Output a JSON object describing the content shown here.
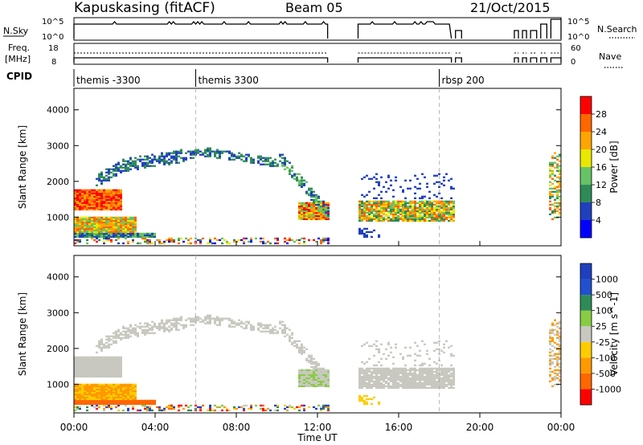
{
  "header": {
    "station": "Kapuskasing (fitACF)",
    "beam": "Beam 05",
    "date": "21/Oct/2015"
  },
  "top_panels": {
    "nsky_label": "N.Sky",
    "nsky_ticks": [
      "10^5",
      "10^0"
    ],
    "nsearch_label": "N.Search",
    "nsearch_ticks": [
      "10^5",
      "10^0"
    ],
    "freq_label_1": "Freq.",
    "freq_label_2": "[MHz]",
    "freq_ticks": [
      "18",
      "8"
    ],
    "nave_label": "Nave",
    "nave_ticks": [
      "60",
      "0"
    ],
    "cpid_label": "CPID"
  },
  "cpid_segments": [
    {
      "label": "themis -3300",
      "start": 0
    },
    {
      "label": "themis 3300",
      "start": 6
    },
    {
      "label": "rbsp 200",
      "start": 18
    }
  ],
  "colors": {
    "power_scale": [
      "#0000ff",
      "#1f3fbf",
      "#2e8b57",
      "#66c266",
      "#e8e800",
      "#ffa500",
      "#ff6600",
      "#ff0000"
    ],
    "velocity_scale": [
      "#1f3fbf",
      "#2050d0",
      "#2e8b57",
      "#88cc44",
      "#c8c8c0",
      "#ffcc00",
      "#ff9900",
      "#ff6600",
      "#ff0000"
    ],
    "ground_scatter": "#c8c8c0"
  },
  "chart_data": [
    {
      "type": "heatmap",
      "panel": "power",
      "ylabel": "Slant Range [km]",
      "yticks": [
        1000,
        2000,
        3000,
        4000
      ],
      "ylim": [
        200,
        4600
      ],
      "xlim": [
        0,
        24
      ],
      "colorbar_label": "Power [dB]",
      "colorbar_ticks": [
        "4",
        "8",
        "12",
        "16",
        "20",
        "24",
        "28"
      ],
      "colorbar_range": [
        0,
        30
      ],
      "x_dashed_lines": [
        6,
        18
      ]
    },
    {
      "type": "heatmap",
      "panel": "velocity",
      "ylabel": "Slant Range [km]",
      "yticks": [
        1000,
        2000,
        3000,
        4000
      ],
      "ylim": [
        200,
        4600
      ],
      "xlim": [
        0,
        24
      ],
      "colorbar_label": "Velocity [m s^-1]",
      "colorbar_ticks": [
        "1000",
        "500",
        "100",
        "25",
        "-25",
        "-100",
        "-500",
        "-1000"
      ],
      "x_dashed_lines": [
        6,
        18
      ]
    }
  ],
  "x_axis": {
    "ticks": [
      "00:00",
      "04:00",
      "08:00",
      "12:00",
      "16:00",
      "20:00",
      "00:00"
    ],
    "tick_hours": [
      0,
      4,
      8,
      12,
      16,
      20,
      24
    ],
    "label": "Time UT"
  },
  "data_gaps": [
    [
      12.5,
      14.0
    ],
    [
      18.7,
      21.0
    ]
  ]
}
